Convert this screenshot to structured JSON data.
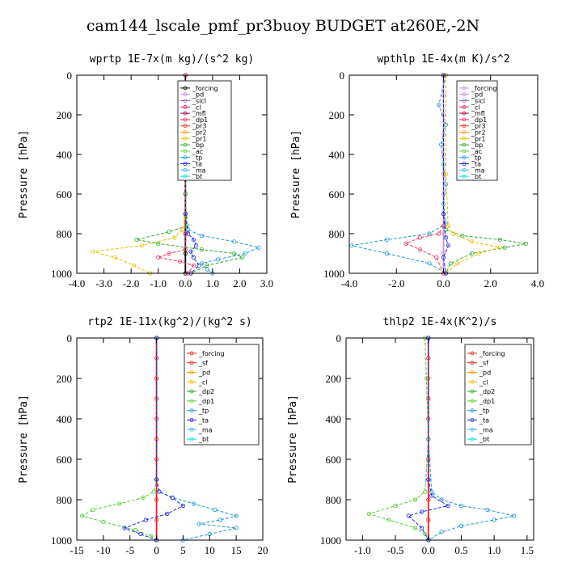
{
  "title": "cam144_lscale_pmf_pr3buoy  BUDGET at260E,-2N",
  "colors": {
    "forcing": "#000000",
    "pd": "#c890e0",
    "sicl": "#9966cc",
    "cl": "#d41c6e",
    "mfl": "#a0003c",
    "dp1": "#ee3355",
    "pr3": "#ee3333",
    "pr2": "#ff9933",
    "pr1": "#e8c000",
    "bp": "#33aa33",
    "ac": "#66cc44",
    "tp": "#2299cc",
    "ta": "#2222ee",
    "ma": "#44bbdd",
    "bt": "#00e0e0",
    "rforcing": "#ee2222",
    "sf": "#ee2222",
    "rpd": "#ff9900",
    "rcl": "#e8c000",
    "dp2": "#22aa22",
    "rdp1": "#55cc33"
  },
  "chart_data": [
    {
      "type": "line",
      "title": "wprtp  1E-7x(m kg)/(s^2 kg)",
      "ylabel": "Pressure [hPa]",
      "xlim": [
        -4.0,
        3.0
      ],
      "ylim": [
        1000,
        0
      ],
      "xticks": [
        "-4.0",
        "-3.0",
        "-2.0",
        "-1.0",
        "0.0",
        "1.0",
        "2.0",
        "3.0"
      ],
      "xtick_values": [
        -4,
        -3,
        -2,
        -1,
        0,
        1,
        2,
        3
      ],
      "yticks": [
        "0",
        "200",
        "400",
        "600",
        "800",
        "1000"
      ],
      "ytick_values": [
        0,
        200,
        400,
        600,
        800,
        1000
      ],
      "legend": [
        "_forcing",
        "_pd",
        "_sicl",
        "_cl",
        "_mfl",
        "_dp1",
        "_pr3",
        "_pr2",
        "_pr1",
        "_bp",
        "_ac",
        "_tp",
        "_ta",
        "_ma",
        "_bt"
      ],
      "series": [
        {
          "name": "_forcing",
          "color": "#000000",
          "x": [
            0,
            0,
            0,
            0,
            0,
            0,
            0,
            0,
            0,
            0,
            0
          ],
          "y": [
            0,
            100,
            200,
            300,
            400,
            500,
            600,
            700,
            800,
            900,
            1000
          ]
        },
        {
          "name": "_pr1",
          "color": "#e8c000",
          "x": [
            0,
            0,
            0,
            -0.1,
            -0.4,
            -1.6,
            -3.4,
            -2.6,
            -1.9,
            -1.3
          ],
          "y": [
            0,
            500,
            720,
            780,
            820,
            860,
            890,
            920,
            960,
            1000
          ]
        },
        {
          "name": "_bp",
          "color": "#33aa33",
          "x": [
            0,
            0,
            0.05,
            -0.6,
            -1.8,
            -1.0,
            0.6,
            1.8,
            2.1,
            0.8,
            0.2
          ],
          "y": [
            0,
            600,
            760,
            790,
            830,
            850,
            880,
            900,
            920,
            960,
            1000
          ]
        },
        {
          "name": "_tp",
          "color": "#2299cc",
          "x": [
            0,
            0,
            0.1,
            0.6,
            1.8,
            2.7,
            2.2,
            1.2,
            0.6,
            0.8,
            1.0
          ],
          "y": [
            0,
            700,
            780,
            810,
            840,
            870,
            900,
            930,
            950,
            980,
            1000
          ]
        },
        {
          "name": "_ta",
          "color": "#2222ee",
          "x": [
            0,
            0,
            0.1,
            0.3,
            0.4,
            0.2,
            0.3,
            0.5,
            0.2
          ],
          "y": [
            0,
            700,
            800,
            830,
            860,
            890,
            920,
            960,
            1000
          ]
        },
        {
          "name": "_dp1",
          "color": "#ee3355",
          "x": [
            0,
            0,
            0,
            -0.6,
            -1.0,
            -0.2,
            0.3,
            0.1
          ],
          "y": [
            0,
            800,
            880,
            900,
            920,
            940,
            960,
            1000
          ]
        }
      ]
    },
    {
      "type": "line",
      "title": "wpthlp  1E-4x(m K)/s^2",
      "ylabel": "Pressure [hPa]",
      "xlim": [
        -4.0,
        4.0
      ],
      "ylim": [
        1000,
        0
      ],
      "xticks": [
        "-4.0",
        "-2.0",
        "0.0",
        "2.0",
        "4.0"
      ],
      "xtick_values": [
        -4,
        -2,
        0,
        2,
        4
      ],
      "yticks": [
        "0",
        "200",
        "400",
        "600",
        "800",
        "1000"
      ],
      "ytick_values": [
        0,
        200,
        400,
        600,
        800,
        1000
      ],
      "legend": [
        "_forcing",
        "_pd",
        "_sicl",
        "_cl",
        "_mfl",
        "_dp1",
        "_pr3",
        "_pr2",
        "_pr1",
        "_bp",
        "_ac",
        "_tp",
        "_ta",
        "_ma",
        "_bt"
      ],
      "series": [
        {
          "name": "_forcing",
          "color": "#c890e0",
          "x": [
            0,
            0,
            0,
            0,
            0,
            0,
            0,
            0,
            0,
            0,
            0
          ],
          "y": [
            0,
            100,
            200,
            300,
            400,
            500,
            600,
            700,
            800,
            900,
            1000
          ]
        },
        {
          "name": "_tp",
          "color": "#2299cc",
          "x": [
            0.1,
            -0.2,
            0.1,
            -0.1,
            0,
            0.1,
            0,
            0.1,
            -0.6,
            -2.4,
            -3.9,
            -2.4,
            -0.6,
            0.1
          ],
          "y": [
            0,
            150,
            250,
            350,
            450,
            550,
            650,
            750,
            800,
            830,
            860,
            900,
            950,
            1000
          ]
        },
        {
          "name": "_bp",
          "color": "#33aa33",
          "x": [
            0,
            0,
            0.1,
            0.8,
            2.4,
            3.5,
            2.6,
            1.2,
            0.3,
            0.1
          ],
          "y": [
            0,
            700,
            780,
            810,
            830,
            850,
            870,
            900,
            950,
            1000
          ]
        },
        {
          "name": "_pr1",
          "color": "#e8c000",
          "x": [
            0.1,
            0.1,
            0.2,
            0.4,
            1.2,
            2.4,
            1.5,
            0.6,
            0.1
          ],
          "y": [
            0,
            500,
            760,
            800,
            840,
            870,
            900,
            950,
            1000
          ]
        },
        {
          "name": "_dp1",
          "color": "#ee3355",
          "x": [
            0,
            0,
            -0.2,
            -1.0,
            -1.6,
            -1.0,
            -0.3,
            0
          ],
          "y": [
            0,
            760,
            800,
            820,
            850,
            880,
            920,
            1000
          ]
        },
        {
          "name": "_ta",
          "color": "#2222ee",
          "x": [
            0,
            0,
            0.1,
            0.2,
            0,
            0.1
          ],
          "y": [
            0,
            700,
            820,
            860,
            920,
            1000
          ]
        }
      ]
    },
    {
      "type": "line",
      "title": "rtp2  1E-11x(kg^2)/(kg^2 s)",
      "ylabel": "Pressure [hPa]",
      "xlim": [
        -15,
        20
      ],
      "ylim": [
        1000,
        0
      ],
      "xticks": [
        "-15",
        "-10",
        "-5",
        "0",
        "5",
        "10",
        "15",
        "20"
      ],
      "xtick_values": [
        -15,
        -10,
        -5,
        0,
        5,
        10,
        15,
        20
      ],
      "yticks": [
        "0",
        "200",
        "400",
        "600",
        "800",
        "1000"
      ],
      "ytick_values": [
        0,
        200,
        400,
        600,
        800,
        1000
      ],
      "legend": [
        "_forcing",
        "_sf",
        "_pd",
        "_cl",
        "_dp2",
        "_dp1",
        "_tp",
        "_ta",
        "_ma",
        "_bt"
      ],
      "series": [
        {
          "name": "_forcing",
          "color": "#ee2222",
          "x": [
            0,
            0,
            0,
            0,
            0,
            0,
            0,
            0,
            0,
            0,
            0
          ],
          "y": [
            0,
            100,
            200,
            300,
            400,
            500,
            600,
            700,
            800,
            900,
            1000
          ]
        },
        {
          "name": "_dp1",
          "color": "#55cc33",
          "x": [
            0,
            0,
            -0.5,
            -2.5,
            -7,
            -12,
            -14,
            -10,
            -4,
            -1,
            0
          ],
          "y": [
            0,
            700,
            760,
            790,
            820,
            850,
            880,
            910,
            950,
            980,
            1000
          ]
        },
        {
          "name": "_tp",
          "color": "#2299cc",
          "x": [
            0,
            0,
            0.5,
            3,
            7,
            11,
            15,
            12,
            8,
            15,
            10,
            5
          ],
          "y": [
            0,
            700,
            760,
            790,
            820,
            850,
            880,
            900,
            920,
            940,
            970,
            1000
          ]
        },
        {
          "name": "_ta",
          "color": "#2222ee",
          "x": [
            0,
            0,
            0.5,
            3,
            5,
            2,
            -2,
            -6,
            -3,
            0
          ],
          "y": [
            0,
            700,
            760,
            790,
            830,
            870,
            900,
            940,
            970,
            1000
          ]
        }
      ]
    },
    {
      "type": "line",
      "title": "thlp2  1E-4x(K^2)/s",
      "ylabel": "Pressure [hPa]",
      "xlim": [
        -1.25,
        1.6
      ],
      "ylim": [
        1000,
        0
      ],
      "xticks": [
        "-1.0",
        "-0.5",
        "0.0",
        "0.5",
        "1.0",
        "1.5"
      ],
      "xtick_values": [
        -1.0,
        -0.5,
        0.0,
        0.5,
        1.0,
        1.5
      ],
      "yticks": [
        "0",
        "200",
        "400",
        "600",
        "800",
        "1000"
      ],
      "ytick_values": [
        0,
        200,
        400,
        600,
        800,
        1000
      ],
      "legend": [
        "_forcing",
        "_sf",
        "_pd",
        "_cl",
        "_dp2",
        "_dp1",
        "_tp",
        "_ta",
        "_ma",
        "_bt"
      ],
      "series": [
        {
          "name": "_forcing",
          "color": "#ee2222",
          "x": [
            0,
            0,
            0,
            0,
            0,
            0,
            0,
            0,
            0,
            0,
            0
          ],
          "y": [
            0,
            100,
            200,
            300,
            400,
            500,
            600,
            700,
            800,
            900,
            1000
          ]
        },
        {
          "name": "_dp1",
          "color": "#55cc33",
          "x": [
            -0.05,
            -0.03,
            0,
            -0.05,
            -0.2,
            -0.5,
            -0.9,
            -0.6,
            -0.2,
            -0.05,
            0
          ],
          "y": [
            0,
            200,
            500,
            760,
            800,
            830,
            870,
            900,
            940,
            970,
            1000
          ]
        },
        {
          "name": "_tp",
          "color": "#2299cc",
          "x": [
            0,
            0,
            0.05,
            0.2,
            0.5,
            0.9,
            1.3,
            1.0,
            0.5,
            0.2,
            0
          ],
          "y": [
            0,
            500,
            760,
            800,
            830,
            850,
            880,
            900,
            930,
            960,
            1000
          ]
        },
        {
          "name": "_ta",
          "color": "#2222ee",
          "x": [
            0,
            0,
            0.05,
            0.3,
            -0.1,
            -0.3,
            -0.1,
            0
          ],
          "y": [
            0,
            700,
            780,
            830,
            860,
            880,
            940,
            1000
          ]
        }
      ]
    }
  ]
}
